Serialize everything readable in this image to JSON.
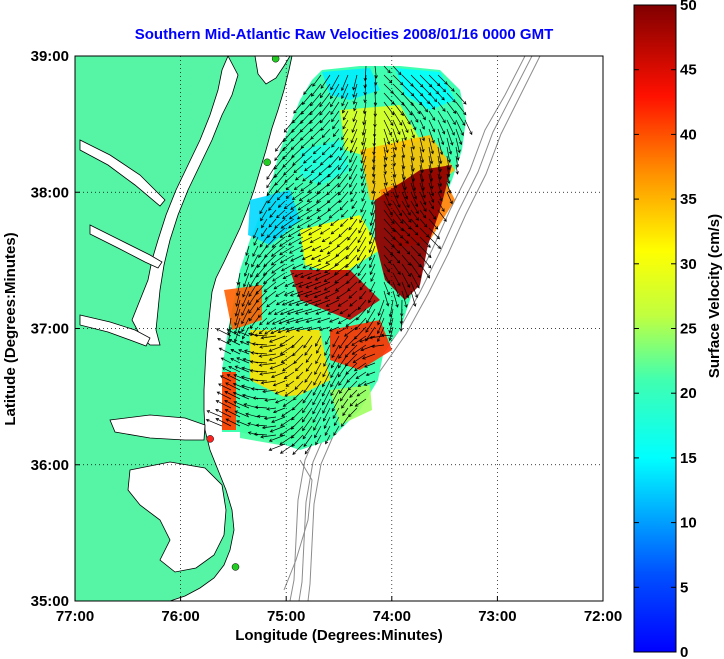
{
  "title": "Southern Mid-Atlantic Raw Velocities 2008/01/16 0000 GMT",
  "colors": {
    "title": "#0000ff",
    "land": "#55f5a5",
    "ocean": "#ffffff",
    "coast": "#000000",
    "bathymetry": "#8c8c8c",
    "arrows": "#000000",
    "station_green": "#22cc22",
    "station_red": "#ff2020"
  },
  "map": {
    "x_axis_label": "Longitude (Degrees:Minutes)",
    "y_axis_label": "Latitude (Degrees:Minutes)",
    "lon_range": [
      -77,
      -72
    ],
    "lat_range": [
      35,
      39
    ],
    "lon_ticks": [
      {
        "value": -77,
        "label": "77:00"
      },
      {
        "value": -76,
        "label": "76:00"
      },
      {
        "value": -75,
        "label": "75:00"
      },
      {
        "value": -74,
        "label": "74:00"
      },
      {
        "value": -73,
        "label": "73:00"
      },
      {
        "value": -72,
        "label": "72:00"
      }
    ],
    "lat_ticks": [
      {
        "value": 39,
        "label": "39:00"
      },
      {
        "value": 38,
        "label": "38:00"
      },
      {
        "value": 37,
        "label": "37:00"
      },
      {
        "value": 36,
        "label": "36:00"
      },
      {
        "value": 35,
        "label": "35:00"
      }
    ],
    "grid": "dotted",
    "stations": [
      {
        "lon": -75.1,
        "lat": 38.98,
        "color": "green"
      },
      {
        "lon": -75.18,
        "lat": 38.22,
        "color": "green"
      },
      {
        "lon": -75.72,
        "lat": 36.19,
        "color": "red"
      },
      {
        "lon": -75.48,
        "lat": 35.25,
        "color": "green"
      }
    ]
  },
  "colorbar": {
    "label": "Surface Velocity (cm/s)",
    "range": [
      0,
      50
    ],
    "ticks": [
      "0",
      "5",
      "10",
      "15",
      "20",
      "25",
      "30",
      "35",
      "40",
      "45",
      "50"
    ],
    "colormap": "jet"
  }
}
